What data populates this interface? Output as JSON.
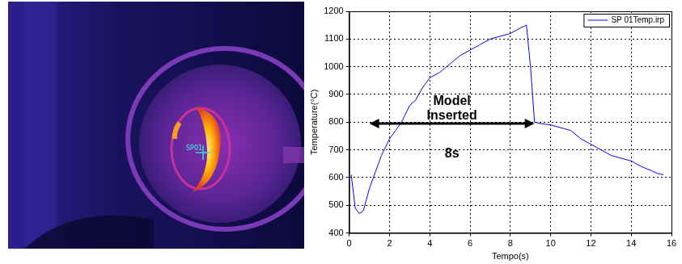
{
  "image": {
    "label": "SP01"
  },
  "chart_data": {
    "type": "line",
    "x_label": "Tempo(s)",
    "y_label": "Temperature(°C)",
    "x": [
      0.1,
      0.3,
      0.5,
      0.7,
      1.0,
      1.3,
      1.6,
      2.0,
      2.3,
      2.6,
      3.0,
      3.3,
      3.6,
      4.0,
      4.5,
      5.0,
      5.5,
      6.0,
      6.5,
      7.0,
      7.5,
      8.0,
      8.5,
      8.8,
      9.0,
      9.2,
      9.5,
      10.0,
      10.5,
      11.0,
      11.5,
      12.0,
      12.5,
      13.0,
      13.5,
      14.0,
      14.5,
      15.0,
      15.3,
      15.6
    ],
    "series": [
      {
        "name": "SP 01Temp.irp",
        "color": "#0000ff",
        "values": [
          610,
          490,
          470,
          480,
          560,
          620,
          680,
          740,
          770,
          800,
          860,
          880,
          920,
          960,
          980,
          1010,
          1040,
          1060,
          1080,
          1100,
          1110,
          1120,
          1140,
          1150,
          1000,
          800,
          795,
          790,
          780,
          770,
          740,
          720,
          700,
          680,
          670,
          660,
          640,
          625,
          615,
          610
        ]
      }
    ],
    "xlim": [
      0,
      16
    ],
    "xticks": [
      0,
      2,
      4,
      6,
      8,
      10,
      12,
      14,
      16
    ],
    "ylim": [
      400,
      1200
    ],
    "yticks": [
      400,
      500,
      600,
      700,
      800,
      900,
      1000,
      1100,
      1200
    ],
    "grid": true,
    "legend": "upper right",
    "annotation": {
      "text": "Model Inserted",
      "duration_label": "8s",
      "x_start": 1.0,
      "x_end": 9.2,
      "y": 795
    }
  }
}
